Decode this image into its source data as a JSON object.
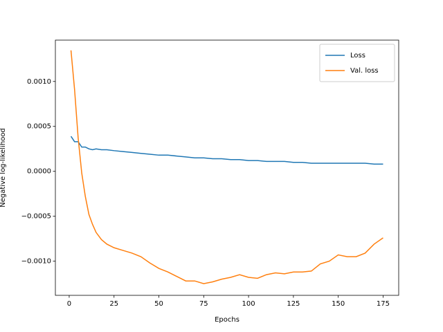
{
  "chart_data": {
    "type": "line",
    "xlabel": "Epochs",
    "ylabel": "Negative log-likelihood",
    "x": [
      1,
      3,
      5,
      7,
      9,
      11,
      13,
      15,
      18,
      21,
      25,
      30,
      35,
      40,
      45,
      50,
      55,
      60,
      65,
      70,
      75,
      80,
      85,
      90,
      95,
      100,
      105,
      110,
      115,
      120,
      125,
      130,
      135,
      140,
      145,
      150,
      155,
      160,
      165,
      170,
      175
    ],
    "series": [
      {
        "name": "Loss",
        "color": "#1f77b4",
        "values": [
          0.00039,
          0.00033,
          0.00033,
          0.00027,
          0.00027,
          0.00025,
          0.00024,
          0.00025,
          0.00024,
          0.00024,
          0.00023,
          0.00022,
          0.00021,
          0.0002,
          0.00019,
          0.00018,
          0.00018,
          0.00017,
          0.00016,
          0.00015,
          0.00015,
          0.00014,
          0.00014,
          0.00013,
          0.00013,
          0.00012,
          0.00012,
          0.00011,
          0.00011,
          0.00011,
          0.0001,
          0.0001,
          9e-05,
          9e-05,
          9e-05,
          9e-05,
          9e-05,
          9e-05,
          9e-05,
          8e-05,
          8e-05
        ]
      },
      {
        "name": "Val. loss",
        "color": "#ff7f0e",
        "values": [
          0.001346,
          0.00091,
          0.00037,
          -2e-05,
          -0.00028,
          -0.00048,
          -0.00059,
          -0.00068,
          -0.00076,
          -0.00081,
          -0.00085,
          -0.00088,
          -0.00091,
          -0.00095,
          -0.00102,
          -0.00108,
          -0.00112,
          -0.00117,
          -0.00122,
          -0.00122,
          -0.00125,
          -0.00123,
          -0.0012,
          -0.00118,
          -0.00115,
          -0.00118,
          -0.00119,
          -0.00115,
          -0.00113,
          -0.00114,
          -0.00112,
          -0.00112,
          -0.00111,
          -0.00103,
          -0.001,
          -0.00093,
          -0.00095,
          -0.00095,
          -0.00091,
          -0.00081,
          -0.00074
        ]
      }
    ],
    "xlim": [
      -7.7,
      183.7
    ],
    "ylim": [
      -0.00138,
      0.00146
    ],
    "xticks": [
      0,
      25,
      50,
      75,
      100,
      125,
      150,
      175
    ],
    "yticks": [
      {
        "value": -0.001,
        "label": "−0.0010"
      },
      {
        "value": -0.0005,
        "label": "−0.0005"
      },
      {
        "value": 0,
        "label": "0.0000"
      },
      {
        "value": 0.0005,
        "label": "0.0005"
      },
      {
        "value": 0.001,
        "label": "0.0010"
      }
    ],
    "legend": "upper right"
  }
}
